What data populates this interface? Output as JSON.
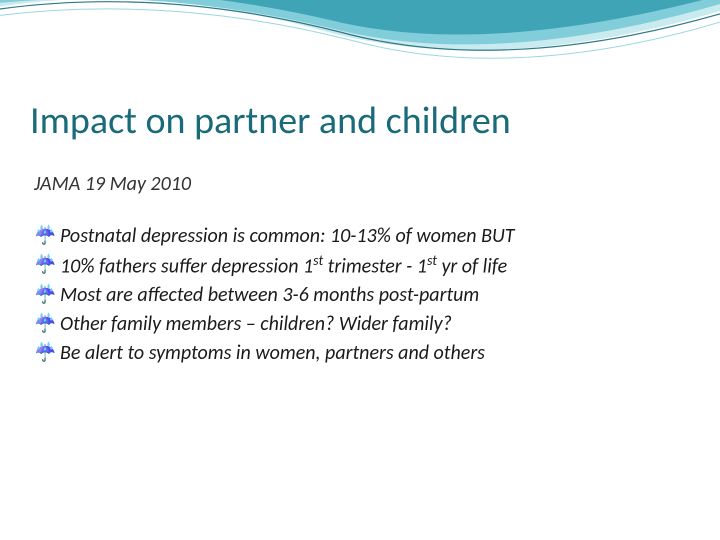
{
  "slide": {
    "title": "Impact on partner and children",
    "subtitle": "JAMA 19 May 2010",
    "bullet_glyph": "☔",
    "bullets": [
      "Postnatal depression is common: 10-13% of women BUT",
      "10% fathers suffer depression 1st trimester - 1st yr of life",
      "Most are affected between 3-6 months post-partum",
      "Other family members – children? Wider family?",
      "Be alert to symptoms in women, partners and others"
    ]
  },
  "theme": {
    "title_color": "#1a6b7a",
    "body_text_color": "#1a1a1a",
    "subtitle_color": "#333333",
    "bullet_color": "#1a6b7a",
    "background_color": "#ffffff",
    "wave_colors": {
      "light": "#bfe6ec",
      "mid": "#6fc5d4",
      "dark": "#2b96ab",
      "line": "#1a6b7a"
    },
    "title_fontsize": 38,
    "body_fontsize": 20,
    "font_family": "Calibri"
  }
}
